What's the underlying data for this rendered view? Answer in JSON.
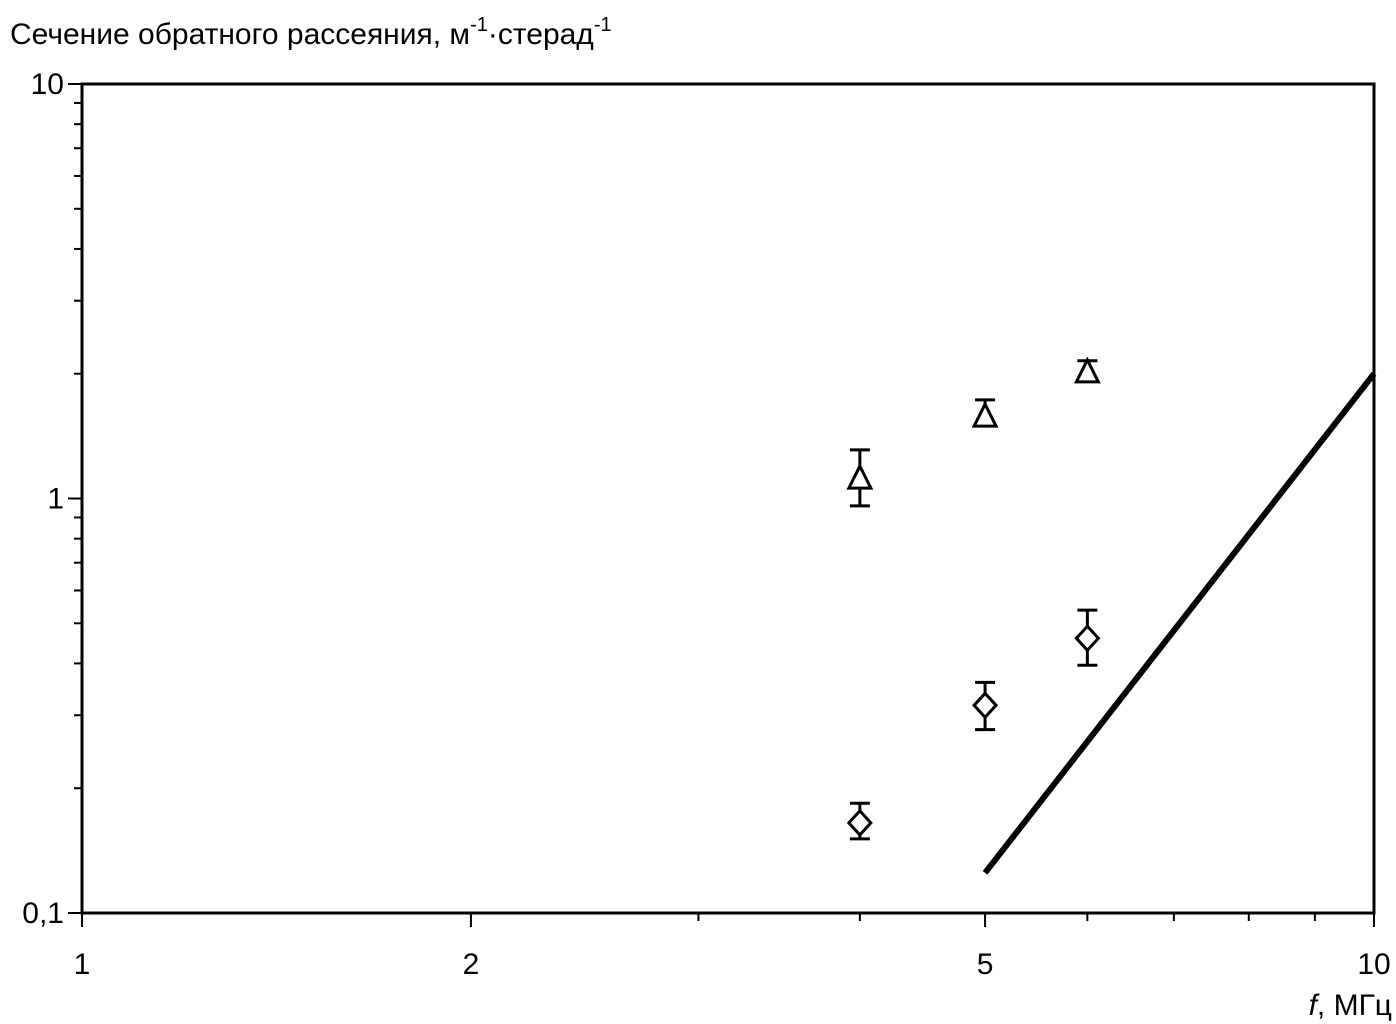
{
  "chart_data": {
    "type": "scatter",
    "x_scale": "log",
    "y_scale": "log",
    "xlim": [
      1,
      10
    ],
    "ylim": [
      0.1,
      10
    ],
    "ylabel_main": "Сечение обратного рассеяния, м",
    "ylabel_sup1": "-1",
    "ylabel_mid": "·стерад",
    "ylabel_sup2": "-1",
    "xlabel_var": "f",
    "xlabel_unit": ", МГц",
    "x_ticks": [
      {
        "value": 1,
        "label": "1"
      },
      {
        "value": 2,
        "label": "2"
      },
      {
        "value": 5,
        "label": "5"
      },
      {
        "value": 10,
        "label": "10"
      }
    ],
    "x_minor_ticks": [
      3,
      4,
      6,
      7,
      8,
      9
    ],
    "y_ticks": [
      {
        "value": 0.1,
        "label": "0,1"
      },
      {
        "value": 1,
        "label": "1"
      },
      {
        "value": 10,
        "label": "10"
      }
    ],
    "y_minor_ticks": [
      0.2,
      0.3,
      0.4,
      0.5,
      0.6,
      0.7,
      0.8,
      0.9,
      2,
      3,
      4,
      5,
      6,
      7,
      8,
      9
    ],
    "grid": false,
    "series": [
      {
        "marker": "triangle",
        "points": [
          {
            "x": 4,
            "y": 1.12,
            "err_low": 0.96,
            "err_high": 1.31
          },
          {
            "x": 5,
            "y": 1.58,
            "err_low": 1.5,
            "err_high": 1.73
          },
          {
            "x": 6,
            "y": 2.02,
            "err_low": 1.95,
            "err_high": 2.15
          }
        ]
      },
      {
        "marker": "diamond",
        "points": [
          {
            "x": 4,
            "y": 0.165,
            "err_low": 0.151,
            "err_high": 0.184
          },
          {
            "x": 5,
            "y": 0.317,
            "err_low": 0.277,
            "err_high": 0.36
          },
          {
            "x": 6,
            "y": 0.46,
            "err_low": 0.396,
            "err_high": 0.538
          }
        ]
      },
      {
        "marker": "line",
        "points": [
          {
            "x": 5,
            "y": 0.125
          },
          {
            "x": 10,
            "y": 2.0
          }
        ]
      }
    ]
  }
}
